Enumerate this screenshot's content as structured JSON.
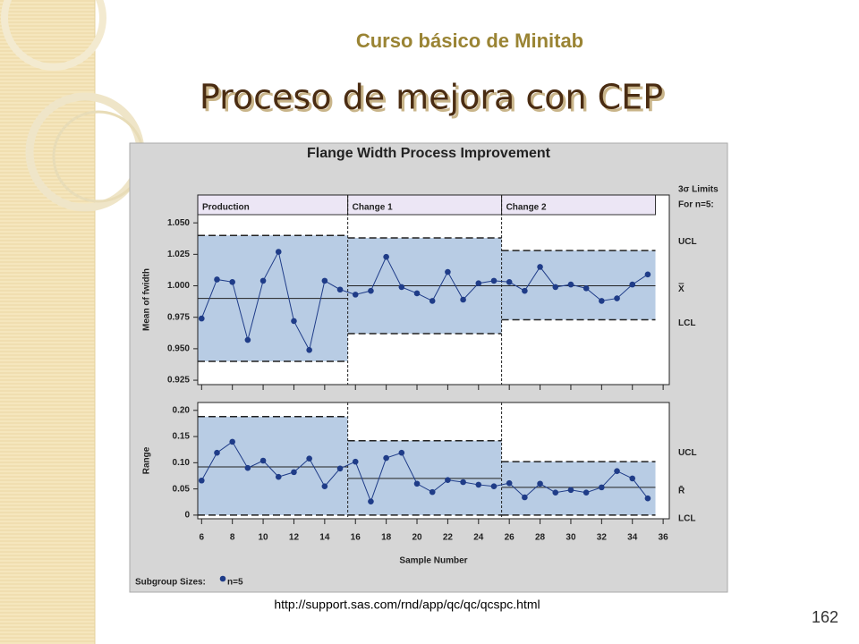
{
  "slide": {
    "header": "Curso básico de Minitab",
    "title": "Proceso de mejora con CEP",
    "url": "http://support.sas.com/rnd/app/qc/qc/qcspc.html",
    "page_number": "162"
  },
  "chart_data": [
    {
      "type": "control",
      "title": "Flange Width Process Improvement",
      "y_label": "Mean of fwidth",
      "limits_note": [
        "3σ Limits",
        "For n=5:"
      ],
      "limit_labels": {
        "ucl": "UCL",
        "center": "X̿",
        "lcl": "LCL"
      },
      "x": [
        6,
        7,
        8,
        9,
        10,
        11,
        12,
        13,
        14,
        15,
        16,
        17,
        18,
        19,
        20,
        21,
        22,
        23,
        24,
        25,
        26,
        27,
        28,
        29,
        30,
        31,
        32,
        33,
        34,
        35
      ],
      "values": [
        0.974,
        1.005,
        1.003,
        0.957,
        1.004,
        1.027,
        0.972,
        0.949,
        1.004,
        0.997,
        0.993,
        0.996,
        1.023,
        0.999,
        0.994,
        0.988,
        1.011,
        0.989,
        1.002,
        1.004,
        1.003,
        0.996,
        1.015,
        0.999,
        1.001,
        0.998,
        0.988,
        0.99,
        1.001,
        1.009
      ],
      "phases": [
        {
          "name": "Production",
          "first": 6,
          "last": 15,
          "ucl": 1.04,
          "center": 0.99,
          "lcl": 0.94
        },
        {
          "name": "Change 1",
          "first": 16,
          "last": 25,
          "ucl": 1.038,
          "center": 1.0,
          "lcl": 0.962
        },
        {
          "name": "Change 2",
          "first": 26,
          "last": 35,
          "ucl": 1.028,
          "center": 1.0,
          "lcl": 0.973
        }
      ],
      "xlim": [
        5.75,
        36.4
      ],
      "xticks": [
        6,
        8,
        10,
        12,
        14,
        16,
        18,
        20,
        22,
        24,
        26,
        28,
        30,
        32,
        34,
        36
      ],
      "ylim": [
        0.9215,
        1.0565
      ],
      "yticks": [
        {
          "value": 1.05,
          "label": "1.050"
        },
        {
          "value": 1.025,
          "label": "1.025"
        },
        {
          "value": 1,
          "label": "1.000"
        },
        {
          "value": 0.975,
          "label": "0.975"
        },
        {
          "value": 0.95,
          "label": "0.950"
        },
        {
          "value": 0.925,
          "label": "0.925"
        }
      ],
      "color": "#1f3c88",
      "band_color": "#b8cce4"
    },
    {
      "type": "control",
      "y_label": "Range",
      "x_label": "Sample Number",
      "limit_labels": {
        "ucl": "UCL",
        "center": "R̄",
        "lcl": "LCL"
      },
      "subgroup_label": "Subgroup Sizes:",
      "subgroup_size": "n=5",
      "x": [
        6,
        7,
        8,
        9,
        10,
        11,
        12,
        13,
        14,
        15,
        16,
        17,
        18,
        19,
        20,
        21,
        22,
        23,
        24,
        25,
        26,
        27,
        28,
        29,
        30,
        31,
        32,
        33,
        34,
        35
      ],
      "values": [
        0.066,
        0.119,
        0.14,
        0.09,
        0.104,
        0.073,
        0.082,
        0.108,
        0.055,
        0.089,
        0.102,
        0.026,
        0.109,
        0.119,
        0.06,
        0.044,
        0.067,
        0.063,
        0.058,
        0.055,
        0.061,
        0.034,
        0.06,
        0.043,
        0.048,
        0.043,
        0.053,
        0.084,
        0.07,
        0.032
      ],
      "phases": [
        {
          "first": 6,
          "last": 15,
          "ucl": 0.188,
          "center": 0.092,
          "lcl": 0
        },
        {
          "first": 16,
          "last": 25,
          "ucl": 0.142,
          "center": 0.07,
          "lcl": 0
        },
        {
          "first": 26,
          "last": 35,
          "ucl": 0.102,
          "center": 0.053,
          "lcl": 0
        }
      ],
      "xlim": [
        5.75,
        36.4
      ],
      "xticks": [
        6,
        8,
        10,
        12,
        14,
        16,
        18,
        20,
        22,
        24,
        26,
        28,
        30,
        32,
        34,
        36
      ],
      "ylim": [
        -0.007,
        0.215
      ],
      "yticks": [
        {
          "value": 0.2,
          "label": "0.20"
        },
        {
          "value": 0.15,
          "label": "0.15"
        },
        {
          "value": 0.1,
          "label": "0.10"
        },
        {
          "value": 0.05,
          "label": "0.05"
        },
        0
      ],
      "color": "#1f3c88",
      "band_color": "#b8cce4"
    }
  ]
}
